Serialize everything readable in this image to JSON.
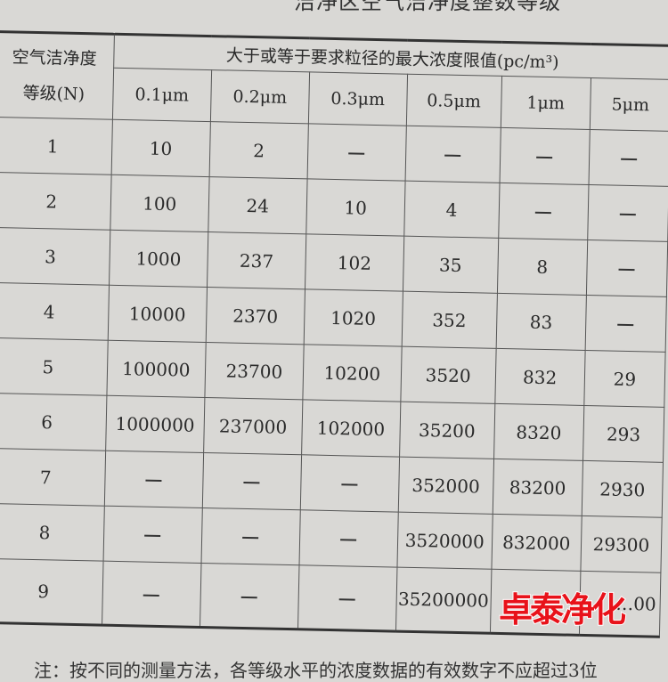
{
  "title": "洁净区空气洁净度整数等级",
  "header": {
    "class_label": "空气洁净度等级(N)",
    "class_label_line1": "空气洁净度",
    "class_label_line2": "等级(N)",
    "limit_label": "大于或等于要求粒径的最大浓度限值(pc/m³)",
    "sizes": [
      "0.1μm",
      "0.2μm",
      "0.3μm",
      "0.5μm",
      "1μm",
      "5μm"
    ]
  },
  "rows": [
    {
      "n": "1",
      "values": [
        "10",
        "2",
        "—",
        "—",
        "—",
        "—"
      ]
    },
    {
      "n": "2",
      "values": [
        "100",
        "24",
        "10",
        "4",
        "—",
        "—"
      ]
    },
    {
      "n": "3",
      "values": [
        "1000",
        "237",
        "102",
        "35",
        "8",
        "—"
      ]
    },
    {
      "n": "4",
      "values": [
        "10000",
        "2370",
        "1020",
        "352",
        "83",
        "—"
      ]
    },
    {
      "n": "5",
      "values": [
        "100000",
        "23700",
        "10200",
        "3520",
        "832",
        "29"
      ]
    },
    {
      "n": "6",
      "values": [
        "1000000",
        "237000",
        "102000",
        "35200",
        "8320",
        "293"
      ]
    },
    {
      "n": "7",
      "values": [
        "—",
        "—",
        "—",
        "352000",
        "83200",
        "2930"
      ]
    },
    {
      "n": "8",
      "values": [
        "—",
        "—",
        "—",
        "3520000",
        "832000",
        "29300"
      ]
    },
    {
      "n": "9",
      "values": [
        "—",
        "—",
        "—",
        "35200000",
        "",
        "…00"
      ]
    }
  ],
  "watermark": "卓泰净化",
  "note": "注：按不同的测量方法，各等级水平的浓度数据的有效数字不应超过3位"
}
